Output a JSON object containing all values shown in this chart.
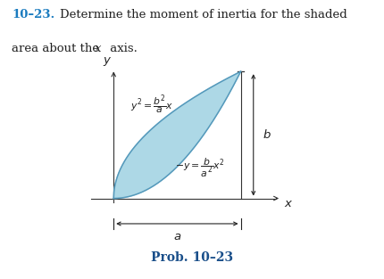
{
  "title_number": "10–23.",
  "prob_label": "Prob. 10–23",
  "eq1_text": "$y^2 = \\dfrac{b^2}{a}x$",
  "eq2_text": "$-y = \\dfrac{b}{a^2}x^2$",
  "label_b": "$b$",
  "label_a": "$a$",
  "label_x": "$x$",
  "label_y": "$y$",
  "shaded_color": "#add8e6",
  "shaded_edge_color": "#5599bb",
  "background": "#ffffff",
  "title_color_number": "#1a7bbf",
  "prob_color": "#1a4f8a",
  "line_color": "#333333",
  "text_color": "#222222",
  "fig_width": 4.31,
  "fig_height": 3.13,
  "dpi": 100
}
